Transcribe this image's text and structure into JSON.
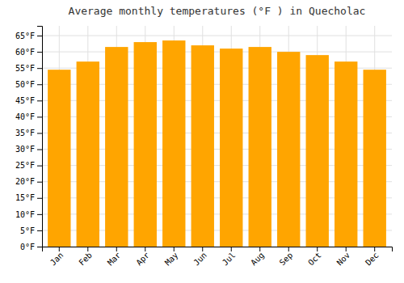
{
  "chart_data": {
    "type": "bar",
    "title": "Average monthly temperatures (°F ) in Quecholac",
    "categories": [
      "Jan",
      "Feb",
      "Mar",
      "Apr",
      "May",
      "Jun",
      "Jul",
      "Aug",
      "Sep",
      "Oct",
      "Nov",
      "Dec"
    ],
    "values": [
      54.5,
      57.0,
      61.5,
      63.0,
      63.5,
      62.0,
      61.0,
      61.5,
      60.0,
      59.0,
      57.0,
      54.5
    ],
    "color": "#FFA500",
    "ylim": [
      0,
      68
    ],
    "yticks": [
      {
        "value": 0,
        "label": "0°F"
      },
      {
        "value": 5,
        "label": "5°F"
      },
      {
        "value": 10,
        "label": "10°F"
      },
      {
        "value": 15,
        "label": "15°F"
      },
      {
        "value": 20,
        "label": "20°F"
      },
      {
        "value": 25,
        "label": "25°F"
      },
      {
        "value": 30,
        "label": "30°F"
      },
      {
        "value": 35,
        "label": "35°F"
      },
      {
        "value": 40,
        "label": "40°F"
      },
      {
        "value": 45,
        "label": "45°F"
      },
      {
        "value": 50,
        "label": "50°F"
      },
      {
        "value": 55,
        "label": "55°F"
      },
      {
        "value": 60,
        "label": "60°F"
      },
      {
        "value": 65,
        "label": "65°F"
      }
    ],
    "grid": true
  }
}
